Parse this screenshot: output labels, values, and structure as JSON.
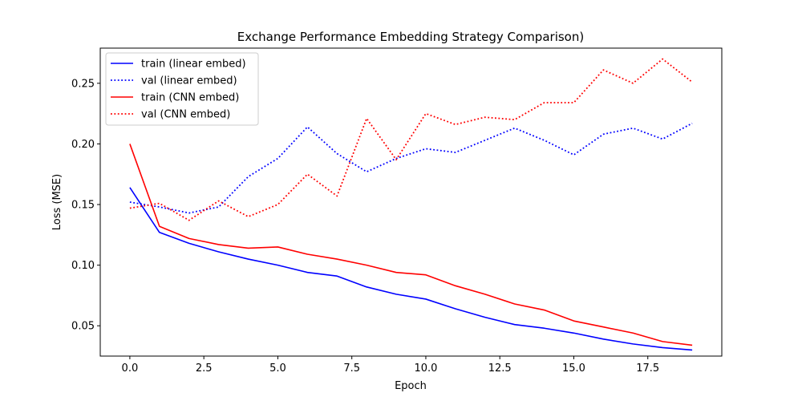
{
  "chart_data": {
    "type": "line",
    "title": "Exchange Performance Embedding Strategy Comparison)",
    "xlabel": "Epoch",
    "ylabel": "Loss (MSE)",
    "xlim": [
      -1,
      20
    ],
    "ylim": [
      0.025,
      0.279
    ],
    "xticks": [
      0.0,
      2.5,
      5.0,
      7.5,
      10.0,
      12.5,
      15.0,
      17.5
    ],
    "xtick_labels": [
      "0.0",
      "2.5",
      "5.0",
      "7.5",
      "10.0",
      "12.5",
      "15.0",
      "17.5"
    ],
    "yticks": [
      0.05,
      0.1,
      0.15,
      0.2,
      0.25
    ],
    "ytick_labels": [
      "0.05",
      "0.10",
      "0.15",
      "0.20",
      "0.25"
    ],
    "grid": false,
    "legend_position": "top-left",
    "x": [
      0,
      1,
      2,
      3,
      4,
      5,
      6,
      7,
      8,
      9,
      10,
      11,
      12,
      13,
      14,
      15,
      16,
      17,
      18,
      19
    ],
    "series": [
      {
        "name": "train (linear embed)",
        "color": "#0000ff",
        "style": "solid",
        "values": [
          0.164,
          0.127,
          0.118,
          0.111,
          0.105,
          0.1,
          0.094,
          0.091,
          0.082,
          0.076,
          0.072,
          0.064,
          0.057,
          0.051,
          0.048,
          0.044,
          0.039,
          0.035,
          0.032,
          0.03
        ]
      },
      {
        "name": "val (linear embed)",
        "color": "#0000ff",
        "style": "dotted",
        "values": [
          0.152,
          0.148,
          0.143,
          0.148,
          0.173,
          0.188,
          0.214,
          0.192,
          0.177,
          0.188,
          0.196,
          0.193,
          0.203,
          0.213,
          0.203,
          0.191,
          0.208,
          0.213,
          0.204,
          0.217
        ]
      },
      {
        "name": "train (CNN embed)",
        "color": "#ff0000",
        "style": "solid",
        "values": [
          0.2,
          0.132,
          0.122,
          0.117,
          0.114,
          0.115,
          0.109,
          0.105,
          0.1,
          0.094,
          0.092,
          0.083,
          0.076,
          0.068,
          0.063,
          0.054,
          0.049,
          0.044,
          0.037,
          0.034
        ]
      },
      {
        "name": "val (CNN embed)",
        "color": "#ff0000",
        "style": "dotted",
        "values": [
          0.147,
          0.151,
          0.137,
          0.153,
          0.14,
          0.15,
          0.175,
          0.157,
          0.221,
          0.187,
          0.225,
          0.216,
          0.222,
          0.22,
          0.234,
          0.234,
          0.261,
          0.25,
          0.27,
          0.251
        ]
      }
    ]
  }
}
